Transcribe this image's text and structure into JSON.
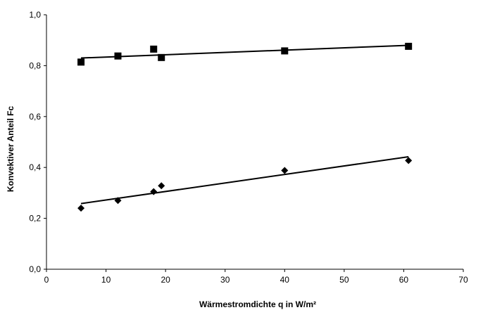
{
  "chart_data": {
    "type": "scatter",
    "title": "",
    "xlabel": "Wärmestromdichte q in W/m²",
    "ylabel": "Konvektiver Anteil Fc",
    "xlim": [
      0,
      70
    ],
    "ylim": [
      0,
      1.0
    ],
    "x_ticks": [
      0,
      10,
      20,
      30,
      40,
      50,
      60,
      70
    ],
    "x_tick_labels": [
      "0",
      "10",
      "20",
      "30",
      "40",
      "50",
      "60",
      "70"
    ],
    "y_ticks": [
      0,
      0.2,
      0.4,
      0.6,
      0.8,
      1.0
    ],
    "y_tick_labels": [
      "0,0",
      "0,2",
      "0,4",
      "0,6",
      "0,8",
      "1,0"
    ],
    "grid": false,
    "legend": "none",
    "series": [
      {
        "marker": "square",
        "x": [
          5.8,
          12.0,
          18.0,
          19.3,
          40.0,
          60.8
        ],
        "y": [
          0.814,
          0.838,
          0.865,
          0.832,
          0.858,
          0.876
        ],
        "trendline": {
          "x": [
            5.8,
            60.8
          ],
          "y": [
            0.83,
            0.88
          ]
        }
      },
      {
        "marker": "diamond",
        "x": [
          5.8,
          12.0,
          18.0,
          19.3,
          40.0,
          60.8
        ],
        "y": [
          0.24,
          0.27,
          0.305,
          0.328,
          0.388,
          0.427
        ],
        "trendline": {
          "x": [
            5.8,
            60.8
          ],
          "y": [
            0.258,
            0.442
          ]
        }
      }
    ],
    "colors": {
      "marker": "#000000",
      "axis": "#000000",
      "background": "#ffffff"
    }
  }
}
